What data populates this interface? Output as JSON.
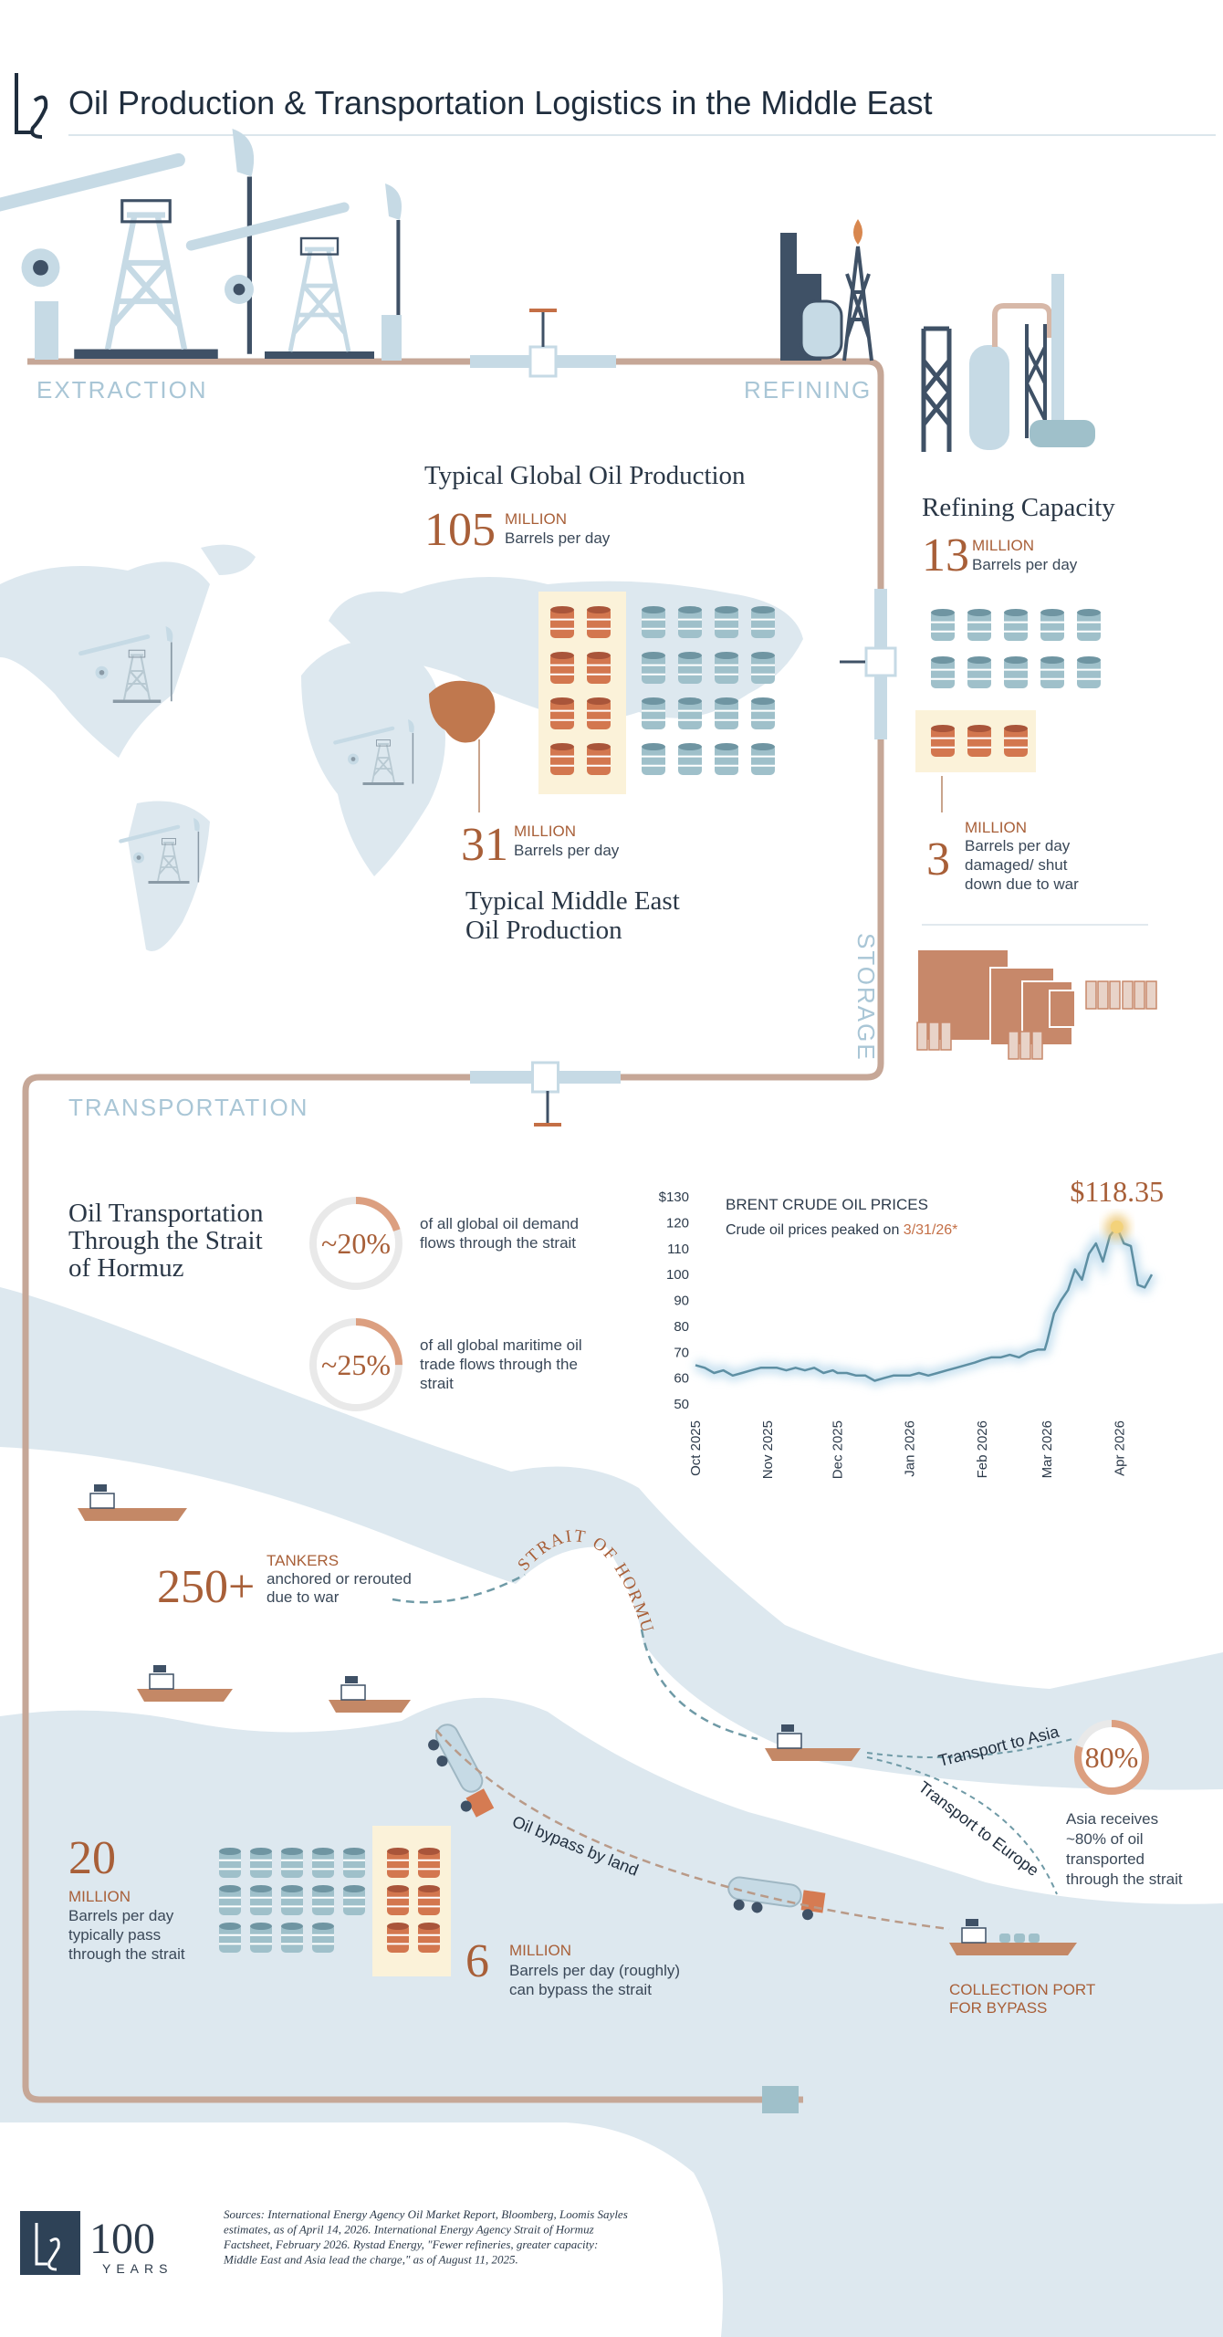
{
  "header": {
    "title": "Oil Production & Transportation Logistics in the Middle East"
  },
  "stages": {
    "extraction": "EXTRACTION",
    "refining": "REFINING",
    "storage": "STORAGE",
    "transportation": "TRANSPORTATION"
  },
  "global_production": {
    "title": "Typical Global Oil Production",
    "value": 105,
    "unit": "MILLION",
    "desc": "Barrels per day"
  },
  "middle_east_production": {
    "title": [
      "Typical Middle East",
      "Oil Production"
    ],
    "value": 31,
    "unit": "MILLION",
    "desc": "Barrels per day"
  },
  "refining": {
    "title": "Refining Capacity",
    "value": 13,
    "unit": "MILLION",
    "desc": "Barrels per day",
    "damaged": {
      "value": 3,
      "unit": "MILLION",
      "desc": [
        "Barrels per day",
        "damaged/ shut",
        "down due to war"
      ]
    }
  },
  "hormuz": {
    "title": [
      "Oil Transportation",
      "Through the Strait",
      "of  Hormuz"
    ],
    "stats": [
      {
        "value": 20,
        "label": "~20%",
        "desc": [
          "of all global oil demand",
          "flows through the strait"
        ]
      },
      {
        "value": 25,
        "label": "~25%",
        "desc": [
          "of all global maritime oil",
          "trade flows through the",
          "strait"
        ]
      }
    ]
  },
  "tankers": {
    "value": 250,
    "label": "250+",
    "unit": "TANKERS",
    "desc": [
      "anchored or rerouted",
      "due to war"
    ]
  },
  "strait_label": "STRAIT OF HORMUZ",
  "routes": {
    "asia": "Transport to Asia",
    "europe": "Transport to Europe",
    "bypass": "Oil bypass by land"
  },
  "asia": {
    "value": 80,
    "label": "80%",
    "desc": [
      "Asia receives",
      "~80% of oil",
      "transported",
      "through the strait"
    ]
  },
  "strait_flow": {
    "value": 20,
    "unit": "MILLION",
    "desc": [
      "Barrels per day",
      "typically pass",
      "through the strait"
    ]
  },
  "bypass": {
    "value": 6,
    "unit": "MILLION",
    "desc": [
      "Barrels per day (roughly)",
      "can bypass the strait"
    ]
  },
  "port": [
    "COLLECTION PORT",
    "FOR BYPASS"
  ],
  "footer": {
    "anniversary": "100",
    "years": "YEARS",
    "sources": [
      "Sources: International Energy Agency Oil Market Report, Bloomberg, Loomis Sayles",
      "estimates, as of April 14, 2026. International Energy Agency Strait of Hormuz",
      "Factsheet, February 2026. Rystad Energy, \"Fewer refineries, greater capacity:",
      "Middle East and Asia lead the charge,\" as of August 11, 2025."
    ]
  },
  "chart_data": {
    "type": "line",
    "title": "BRENT CRUDE OIL PRICES",
    "subtitle": "Crude oil prices peaked on",
    "subtitle_highlight": "3/31/26*",
    "annotation": {
      "value": 118.35,
      "label": "$118.35"
    },
    "x": [
      0,
      4,
      8,
      12,
      16,
      20,
      24,
      28,
      31,
      35,
      39,
      43,
      47,
      51,
      55,
      59,
      61,
      65,
      69,
      73,
      77,
      81,
      85,
      89,
      92,
      96,
      100,
      104,
      108,
      112,
      116,
      120,
      123,
      127,
      131,
      135,
      139,
      143,
      147,
      150,
      151,
      154,
      157,
      160,
      163,
      166,
      169,
      172,
      175,
      178,
      181,
      184,
      187,
      190,
      193,
      196
    ],
    "series": [
      {
        "name": "Brent",
        "color": "#5e8fa3",
        "values": [
          65,
          64,
          62,
          63,
          61,
          62,
          63,
          64,
          64,
          64,
          63,
          64,
          63,
          64,
          62,
          63,
          62,
          62,
          61,
          61,
          59,
          60,
          61,
          61,
          61,
          62,
          61,
          62,
          63,
          64,
          65,
          66,
          67,
          68,
          68,
          69,
          68,
          70,
          71,
          71,
          74,
          85,
          90,
          94,
          102,
          98,
          108,
          112,
          105,
          115,
          118.35,
          112,
          111,
          96,
          95,
          100
        ]
      }
    ],
    "xlim": [
      0,
      196
    ],
    "xticks": [
      {
        "value": 0,
        "label": "Oct 2025"
      },
      {
        "value": 31,
        "label": "Nov 2025"
      },
      {
        "value": 61,
        "label": "Dec 2025"
      },
      {
        "value": 92,
        "label": "Jan 2026"
      },
      {
        "value": 123,
        "label": "Feb 2026"
      },
      {
        "value": 151,
        "label": "Mar 2026"
      },
      {
        "value": 182,
        "label": "Apr 2026"
      }
    ],
    "ylim": [
      50,
      130
    ],
    "yticks": [
      {
        "value": 130,
        "label": "$130"
      },
      120,
      110,
      100,
      90,
      80,
      70,
      60,
      50
    ],
    "grid": false
  }
}
